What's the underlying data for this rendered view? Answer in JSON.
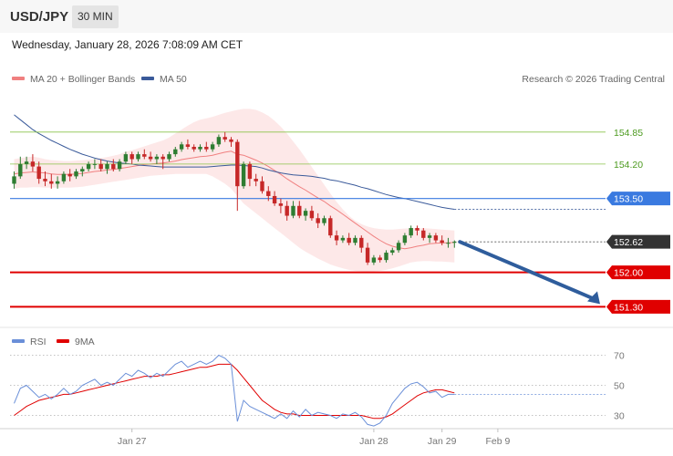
{
  "header": {
    "symbol": "USD/JPY",
    "timeframe": "30 MIN"
  },
  "timestamp": "Wednesday, January 28, 2026 7:08:09 AM CET",
  "legend": {
    "ma20": "MA 20 + Bollinger Bands",
    "ma50": "MA 50",
    "rsi": "RSI",
    "rsi_ma": "9MA",
    "copyright": "Research © 2026 Trading Central"
  },
  "colors": {
    "up": "#2e7d32",
    "down": "#c62828",
    "ma20": "#f08080",
    "bands": "#fde4e4",
    "ma50": "#3a5a9a",
    "resistance": "#8bc34a",
    "pivot": "#3a7ae0",
    "support": "#e00000",
    "rsi": "#6a8fd8",
    "rsi_ma": "#e00000",
    "arrow": "#2f5d9c"
  },
  "chart_data": {
    "type": "candlestick",
    "y_range": [
      150.9,
      155.68
    ],
    "levels": [
      {
        "label": "154.85",
        "value": 154.85,
        "kind": "resistance"
      },
      {
        "label": "154.20",
        "value": 154.2,
        "kind": "resistance"
      },
      {
        "label": "153.50",
        "value": 153.5,
        "kind": "pivot"
      },
      {
        "label": "152.62",
        "value": 152.62,
        "kind": "last"
      },
      {
        "label": "152.00",
        "value": 152.0,
        "kind": "support"
      },
      {
        "label": "151.30",
        "value": 151.3,
        "kind": "support"
      }
    ],
    "x_labels": [
      "Jan 27",
      "Jan 28",
      "Jan 29",
      "Feb 9"
    ],
    "x_label_index": [
      19,
      58,
      69,
      78
    ],
    "candles": [
      [
        153.8,
        154.05,
        153.7,
        153.95
      ],
      [
        153.95,
        154.35,
        153.9,
        154.2
      ],
      [
        154.2,
        154.35,
        154.1,
        154.25
      ],
      [
        154.25,
        154.4,
        154.05,
        154.15
      ],
      [
        154.15,
        154.25,
        153.8,
        153.9
      ],
      [
        153.9,
        154.05,
        153.75,
        153.85
      ],
      [
        153.85,
        154.0,
        153.7,
        153.8
      ],
      [
        153.8,
        153.95,
        153.7,
        153.85
      ],
      [
        153.85,
        154.05,
        153.8,
        154.0
      ],
      [
        154.0,
        154.1,
        153.85,
        153.95
      ],
      [
        153.95,
        154.1,
        153.9,
        154.05
      ],
      [
        154.05,
        154.15,
        153.95,
        154.1
      ],
      [
        154.1,
        154.25,
        154.05,
        154.2
      ],
      [
        154.2,
        154.3,
        154.1,
        154.2
      ],
      [
        154.2,
        154.3,
        154.05,
        154.1
      ],
      [
        154.1,
        154.25,
        154.0,
        154.2
      ],
      [
        154.2,
        154.3,
        154.05,
        154.1
      ],
      [
        154.1,
        154.3,
        154.05,
        154.25
      ],
      [
        154.25,
        154.45,
        154.2,
        154.4
      ],
      [
        154.4,
        154.45,
        154.2,
        154.3
      ],
      [
        154.3,
        154.45,
        154.25,
        154.4
      ],
      [
        154.4,
        154.5,
        154.3,
        154.35
      ],
      [
        154.35,
        154.45,
        154.25,
        154.3
      ],
      [
        154.3,
        154.4,
        154.2,
        154.35
      ],
      [
        154.35,
        154.4,
        154.1,
        154.3
      ],
      [
        154.3,
        154.45,
        154.25,
        154.4
      ],
      [
        154.4,
        154.55,
        154.35,
        154.5
      ],
      [
        154.5,
        154.65,
        154.45,
        154.6
      ],
      [
        154.6,
        154.7,
        154.5,
        154.55
      ],
      [
        154.55,
        154.6,
        154.45,
        154.5
      ],
      [
        154.5,
        154.6,
        154.45,
        154.55
      ],
      [
        154.55,
        154.65,
        154.45,
        154.5
      ],
      [
        154.5,
        154.65,
        154.45,
        154.6
      ],
      [
        154.6,
        154.8,
        154.55,
        154.75
      ],
      [
        154.75,
        154.85,
        154.65,
        154.7
      ],
      [
        154.7,
        154.75,
        154.55,
        154.65
      ],
      [
        154.65,
        154.7,
        153.25,
        153.75
      ],
      [
        153.75,
        154.25,
        153.7,
        154.2
      ],
      [
        154.2,
        154.25,
        153.75,
        153.9
      ],
      [
        153.9,
        154.0,
        153.75,
        153.85
      ],
      [
        153.85,
        153.95,
        153.6,
        153.65
      ],
      [
        153.65,
        153.75,
        153.45,
        153.55
      ],
      [
        153.55,
        153.65,
        153.35,
        153.4
      ],
      [
        153.4,
        153.5,
        153.2,
        153.35
      ],
      [
        153.35,
        153.45,
        153.05,
        153.15
      ],
      [
        153.15,
        153.45,
        153.1,
        153.35
      ],
      [
        153.35,
        153.45,
        153.1,
        153.15
      ],
      [
        153.15,
        153.3,
        153.05,
        153.25
      ],
      [
        153.25,
        153.35,
        153.05,
        153.1
      ],
      [
        153.1,
        153.2,
        152.9,
        153.0
      ],
      [
        153.0,
        153.15,
        152.95,
        153.1
      ],
      [
        153.1,
        153.15,
        152.7,
        152.75
      ],
      [
        152.75,
        152.85,
        152.55,
        152.65
      ],
      [
        152.65,
        152.75,
        152.6,
        152.7
      ],
      [
        152.7,
        152.8,
        152.55,
        152.6
      ],
      [
        152.6,
        152.75,
        152.55,
        152.7
      ],
      [
        152.7,
        152.75,
        152.4,
        152.5
      ],
      [
        152.5,
        152.6,
        152.15,
        152.2
      ],
      [
        152.2,
        152.35,
        152.15,
        152.3
      ],
      [
        152.3,
        152.35,
        152.2,
        152.25
      ],
      [
        152.25,
        152.45,
        152.2,
        152.4
      ],
      [
        152.4,
        152.5,
        152.35,
        152.45
      ],
      [
        152.45,
        152.65,
        152.4,
        152.6
      ],
      [
        152.6,
        152.8,
        152.55,
        152.75
      ],
      [
        152.75,
        152.95,
        152.7,
        152.9
      ],
      [
        152.9,
        152.95,
        152.75,
        152.85
      ],
      [
        152.85,
        152.9,
        152.65,
        152.7
      ],
      [
        152.7,
        152.8,
        152.6,
        152.75
      ],
      [
        152.75,
        152.8,
        152.6,
        152.65
      ],
      [
        152.65,
        152.75,
        152.55,
        152.6
      ],
      [
        152.6,
        152.7,
        152.5,
        152.6
      ],
      [
        152.6,
        152.65,
        152.5,
        152.62
      ]
    ],
    "ma20": [
      154.0,
      154.02,
      154.03,
      154.04,
      154.03,
      154.02,
      154.0,
      153.99,
      153.99,
      153.99,
      154.0,
      154.01,
      154.03,
      154.05,
      154.06,
      154.08,
      154.09,
      154.11,
      154.13,
      154.15,
      154.17,
      154.19,
      154.2,
      154.21,
      154.22,
      154.24,
      154.26,
      154.29,
      154.31,
      154.33,
      154.35,
      154.36,
      154.38,
      154.41,
      154.44,
      154.46,
      154.4,
      154.38,
      154.33,
      154.28,
      154.22,
      154.15,
      154.07,
      153.99,
      153.9,
      153.82,
      153.74,
      153.67,
      153.59,
      153.51,
      153.44,
      153.35,
      153.27,
      153.18,
      153.09,
      153.0,
      152.91,
      152.82,
      152.73,
      152.65,
      152.58,
      152.53,
      152.5,
      152.48,
      152.5,
      152.53,
      152.55,
      152.58,
      152.59,
      152.6,
      152.6,
      152.61
    ],
    "bollinger_upper": [
      154.3,
      154.32,
      154.34,
      154.35,
      154.33,
      154.3,
      154.28,
      154.27,
      154.26,
      154.26,
      154.27,
      154.28,
      154.29,
      154.3,
      154.32,
      154.34,
      154.37,
      154.4,
      154.45,
      154.48,
      154.52,
      154.56,
      154.6,
      154.64,
      154.68,
      154.74,
      154.82,
      154.9,
      154.98,
      155.05,
      155.1,
      155.13,
      155.16,
      155.2,
      155.24,
      155.27,
      155.3,
      155.32,
      155.32,
      155.3,
      155.25,
      155.18,
      155.08,
      154.96,
      154.82,
      154.66,
      154.5,
      154.32,
      154.14,
      153.96,
      153.78,
      153.6,
      153.43,
      153.28,
      153.15,
      153.05,
      152.98,
      152.93,
      152.9,
      152.88,
      152.87,
      152.87,
      152.88,
      152.89,
      152.9,
      152.9,
      152.9,
      152.89,
      152.88,
      152.87,
      152.86,
      152.85
    ],
    "bollinger_lower": [
      153.7,
      153.72,
      153.72,
      153.73,
      153.73,
      153.72,
      153.72,
      153.72,
      153.72,
      153.72,
      153.73,
      153.74,
      153.76,
      153.78,
      153.8,
      153.82,
      153.84,
      153.86,
      153.88,
      153.9,
      153.92,
      153.94,
      153.96,
      153.97,
      153.98,
      153.99,
      154.0,
      154.0,
      154.0,
      154.0,
      154.0,
      154.0,
      153.95,
      153.88,
      153.8,
      153.7,
      153.55,
      153.4,
      153.3,
      153.2,
      153.1,
      153.0,
      152.9,
      152.8,
      152.7,
      152.6,
      152.5,
      152.42,
      152.35,
      152.28,
      152.22,
      152.16,
      152.12,
      152.08,
      152.05,
      152.03,
      152.02,
      152.01,
      152.02,
      152.03,
      152.05,
      152.08,
      152.12,
      152.16,
      152.2,
      152.22,
      152.23,
      152.23,
      152.22,
      152.22,
      152.21,
      152.2
    ],
    "ma50": [
      155.2,
      155.1,
      155.0,
      154.9,
      154.82,
      154.75,
      154.68,
      154.62,
      154.56,
      154.5,
      154.45,
      154.4,
      154.36,
      154.32,
      154.29,
      154.26,
      154.24,
      154.22,
      154.21,
      154.2,
      154.18,
      154.17,
      154.16,
      154.15,
      154.14,
      154.14,
      154.14,
      154.14,
      154.14,
      154.14,
      154.14,
      154.14,
      154.15,
      154.16,
      154.17,
      154.18,
      154.18,
      154.17,
      154.16,
      154.15,
      154.12,
      154.08,
      154.05,
      154.02,
      154.0,
      153.98,
      153.97,
      153.96,
      153.95,
      153.93,
      153.91,
      153.88,
      153.86,
      153.83,
      153.8,
      153.77,
      153.73,
      153.7,
      153.66,
      153.62,
      153.58,
      153.55,
      153.52,
      153.5,
      153.47,
      153.44,
      153.41,
      153.38,
      153.35,
      153.32,
      153.3,
      153.28
    ],
    "rsi_range": [
      20,
      80
    ],
    "rsi_levels": [
      70,
      50,
      30
    ],
    "rsi": [
      38,
      48,
      50,
      46,
      42,
      44,
      41,
      44,
      48,
      44,
      46,
      50,
      52,
      54,
      50,
      52,
      50,
      54,
      58,
      56,
      60,
      58,
      55,
      58,
      56,
      60,
      64,
      66,
      62,
      64,
      66,
      64,
      66,
      70,
      68,
      64,
      26,
      40,
      36,
      34,
      32,
      30,
      28,
      31,
      28,
      33,
      29,
      34,
      30,
      32,
      31,
      30,
      28,
      31,
      30,
      32,
      29,
      24,
      23,
      25,
      30,
      38,
      43,
      48,
      51,
      52,
      49,
      45,
      46,
      42,
      44,
      44
    ],
    "rsi_ma": [
      30,
      33,
      36,
      38,
      40,
      41,
      42,
      43,
      44,
      44,
      45,
      46,
      47,
      48,
      49,
      50,
      51,
      52,
      53,
      54,
      55,
      56,
      56,
      56,
      57,
      57,
      58,
      59,
      60,
      61,
      62,
      62,
      63,
      64,
      64,
      64,
      60,
      55,
      50,
      45,
      40,
      37,
      34,
      32,
      31,
      31,
      30,
      30,
      30,
      30,
      30,
      30,
      30,
      30,
      30,
      30,
      30,
      29,
      28,
      28,
      29,
      31,
      34,
      37,
      40,
      43,
      45,
      46,
      47,
      47,
      46,
      45
    ]
  }
}
